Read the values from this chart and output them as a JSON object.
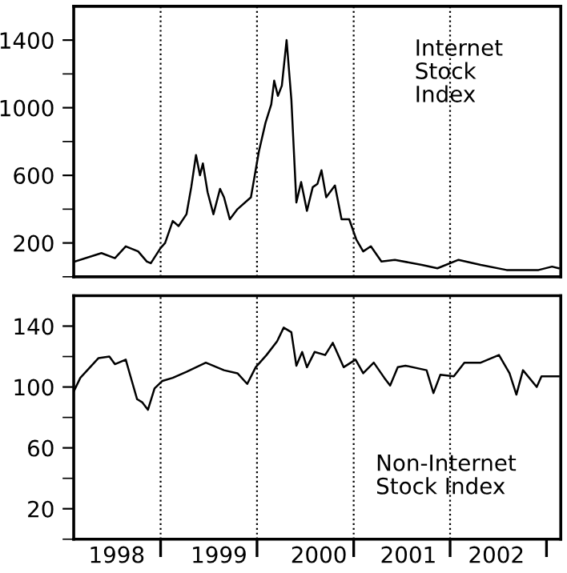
{
  "chart_data": [
    {
      "type": "line",
      "tick_labels": "y",
      "xlim": [
        "1998-02-06",
        "2003-02-24"
      ],
      "ylim": [
        0,
        1600
      ],
      "yticks": [
        {
          "value": 0,
          "label": null
        },
        200,
        {
          "value": 400,
          "label": null
        },
        600,
        {
          "value": 800,
          "label": null
        },
        1000,
        {
          "value": 1200,
          "label": null
        },
        1400
      ],
      "annotations": [
        "Internet\nStock\nIndex"
      ],
      "ref_lines": [
        {
          "axis": "x",
          "value": "1999-01-01",
          "line_style": "dotted"
        },
        {
          "axis": "x",
          "value": "2000-01-01",
          "line_style": "dotted"
        },
        {
          "axis": "x",
          "value": "2001-01-01",
          "line_style": "dotted"
        },
        {
          "axis": "x",
          "value": "2002-01-01",
          "line_style": "dotted"
        }
      ],
      "series": [
        {
          "color": "#000000",
          "x": [
            "1998-02-09",
            "1998-05-22",
            "1998-07-12",
            "1998-08-22",
            "1998-10-08",
            "1998-11-10",
            "1998-11-25",
            "1999-01-01",
            "1999-01-18",
            "1999-02-16",
            "1999-03-10",
            "1999-04-09",
            "1999-04-27",
            "1999-05-15",
            "1999-05-30",
            "1999-06-10",
            "1999-06-28",
            "1999-07-20",
            "1999-08-14",
            "1999-08-29",
            "1999-09-20",
            "1999-10-19",
            "1999-12-09",
            "2000-01-08",
            "2000-02-02",
            "2000-02-24",
            "2000-03-06",
            "2000-03-20",
            "2000-04-04",
            "2000-04-22",
            "2000-05-10",
            "2000-05-29",
            "2000-06-16",
            "2000-07-08",
            "2000-07-30",
            "2000-08-17",
            "2000-09-01",
            "2000-09-19",
            "2000-10-22",
            "2000-11-16",
            "2000-12-15",
            "2001-01-11",
            "2001-02-06",
            "2001-03-07",
            "2001-04-16",
            "2001-06-06",
            "2001-09-16",
            "2001-11-14",
            "2002-02-02",
            "2002-04-27",
            "2002-08-03",
            "2002-12-02",
            "2003-01-22",
            "2003-02-16"
          ],
          "values": [
            90,
            140,
            110,
            180,
            150,
            90,
            80,
            170,
            200,
            330,
            300,
            370,
            530,
            720,
            600,
            670,
            500,
            370,
            520,
            470,
            340,
            400,
            470,
            740,
            910,
            1020,
            1160,
            1070,
            1130,
            1400,
            1050,
            440,
            560,
            390,
            530,
            550,
            630,
            470,
            540,
            340,
            340,
            220,
            150,
            180,
            90,
            100,
            70,
            50,
            100,
            70,
            40,
            40,
            60,
            50
          ]
        }
      ]
    },
    {
      "type": "line",
      "xlim": [
        "1998-02-06",
        "2003-02-24"
      ],
      "ylim": [
        0,
        160
      ],
      "xticks": [
        {
          "value": "1998-07-19",
          "label": "1998"
        },
        {
          "value": "1999-01-01",
          "label": null
        },
        {
          "value": "1999-08-10",
          "label": "1999"
        },
        {
          "value": "2000-01-01",
          "label": null
        },
        {
          "value": "2000-08-22",
          "label": "2000"
        },
        {
          "value": "2001-01-01",
          "label": null
        },
        {
          "value": "2001-07-27",
          "label": "2001"
        },
        {
          "value": "2002-01-01",
          "label": null
        },
        {
          "value": "2002-06-25",
          "label": "2002"
        },
        {
          "value": "2003-01-01",
          "label": null
        }
      ],
      "yticks": [
        {
          "value": 0,
          "label": null
        },
        20,
        {
          "value": 40,
          "label": null
        },
        60,
        {
          "value": 80,
          "label": null
        },
        100,
        {
          "value": 120,
          "label": null
        },
        140
      ],
      "annotations": [
        "Non-Internet\nStock Index"
      ],
      "ref_lines": [
        {
          "axis": "x",
          "value": "1999-01-01",
          "line_style": "dotted"
        },
        {
          "axis": "x",
          "value": "2000-01-01",
          "line_style": "dotted"
        },
        {
          "axis": "x",
          "value": "2001-01-01",
          "line_style": "dotted"
        },
        {
          "axis": "x",
          "value": "2002-01-01",
          "line_style": "dotted"
        }
      ],
      "series": [
        {
          "color": "#000000",
          "x": [
            "1998-02-06",
            "1998-03-03",
            "1998-05-11",
            "1998-06-21",
            "1998-07-12",
            "1998-08-22",
            "1998-09-09",
            "1998-10-04",
            "1998-10-23",
            "1998-11-14",
            "1998-12-09",
            "1999-01-08",
            "1999-02-16",
            "1999-04-09",
            "1999-06-21",
            "1999-08-29",
            "1999-10-19",
            "1999-11-25",
            "1999-12-27",
            "2000-02-06",
            "2000-03-17",
            "2000-04-11",
            "2000-05-10",
            "2000-05-29",
            "2000-06-20",
            "2000-07-08",
            "2000-08-06",
            "2000-09-15",
            "2000-10-14",
            "2000-11-24",
            "2001-01-08",
            "2001-02-06",
            "2001-03-18",
            "2001-04-27",
            "2001-05-19",
            "2001-06-17",
            "2001-07-16",
            "2001-10-04",
            "2001-10-30",
            "2001-11-25",
            "2002-01-15",
            "2002-02-24",
            "2002-04-27",
            "2002-07-05",
            "2002-08-14",
            "2002-09-09",
            "2002-10-04",
            "2002-11-25",
            "2002-12-13",
            "2003-02-16"
          ],
          "values": [
            97,
            106,
            119,
            120,
            115,
            118,
            107,
            92,
            90,
            85,
            99,
            104,
            106,
            110,
            116,
            111,
            109,
            102,
            113,
            121,
            130,
            139,
            136,
            114,
            123,
            113,
            123,
            121,
            129,
            113,
            118,
            109,
            116,
            106,
            101,
            113,
            114,
            111,
            96,
            108,
            107,
            116,
            116,
            121,
            109,
            95,
            111,
            100,
            107,
            107
          ]
        }
      ]
    }
  ]
}
